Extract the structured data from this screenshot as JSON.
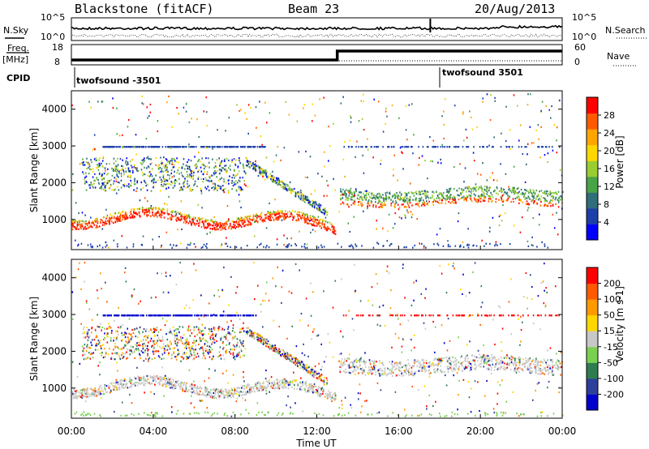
{
  "header": {
    "station": "Blackstone (fitACF)",
    "beam": "Beam 23",
    "date": "20/Aug/2013"
  },
  "side_labels": {
    "nsky": "N.Sky",
    "nsearch": "N.Search",
    "freq": "Freq.",
    "freq_unit": "[MHz]",
    "nave": "Nave",
    "cpid": "CPID"
  },
  "noise_axis": {
    "left_ticks": [
      "10^5",
      "10^0"
    ],
    "right_ticks": [
      "10^5",
      "10^0"
    ]
  },
  "freq_axis": {
    "left_ticks": [
      "18",
      "8"
    ],
    "right_ticks": [
      "60",
      "0"
    ]
  },
  "cpid_segments": [
    {
      "label": "twofsound -3501",
      "start_hour": 0
    },
    {
      "label": "twofsound 3501",
      "start_hour": 18
    }
  ],
  "time_axis": {
    "label": "Time UT",
    "ticks": [
      "00:00",
      "04:00",
      "08:00",
      "12:00",
      "16:00",
      "20:00",
      "00:00"
    ]
  },
  "chart_data": [
    {
      "type": "heatmap",
      "name": "power-panel",
      "xlabel": "Time UT",
      "ylabel": "Slant Range [km]",
      "xlim": [
        0,
        24
      ],
      "ylim": [
        180,
        4500
      ],
      "yticks": [
        1000,
        2000,
        3000,
        4000
      ],
      "colorbar": {
        "label": "Power [dB]",
        "ticks": [
          "28",
          "24",
          "20",
          "16",
          "12",
          "8",
          "4"
        ],
        "colors": [
          "#0000ff",
          "#1c3fa8",
          "#2f6e7a",
          "#47a447",
          "#9acd32",
          "#ffd700",
          "#ffa500",
          "#ff5a00",
          "#ff0000"
        ]
      }
    },
    {
      "type": "heatmap",
      "name": "velocity-panel",
      "xlabel": "Time UT",
      "ylabel": "Slant Range [km]",
      "xlim": [
        0,
        24
      ],
      "ylim": [
        180,
        4500
      ],
      "yticks": [
        1000,
        2000,
        3000,
        4000
      ],
      "colorbar": {
        "label": "Velocity [m s-1]",
        "ticks": [
          "200",
          "100",
          "50",
          "15",
          "-15",
          "-50",
          "-100",
          "-200"
        ],
        "colors": [
          "#0000cc",
          "#2c3f9a",
          "#2e7d50",
          "#7ad151",
          "#c8c8c8",
          "#ffd700",
          "#ff9900",
          "#ff5a00",
          "#ff0000"
        ]
      }
    }
  ]
}
